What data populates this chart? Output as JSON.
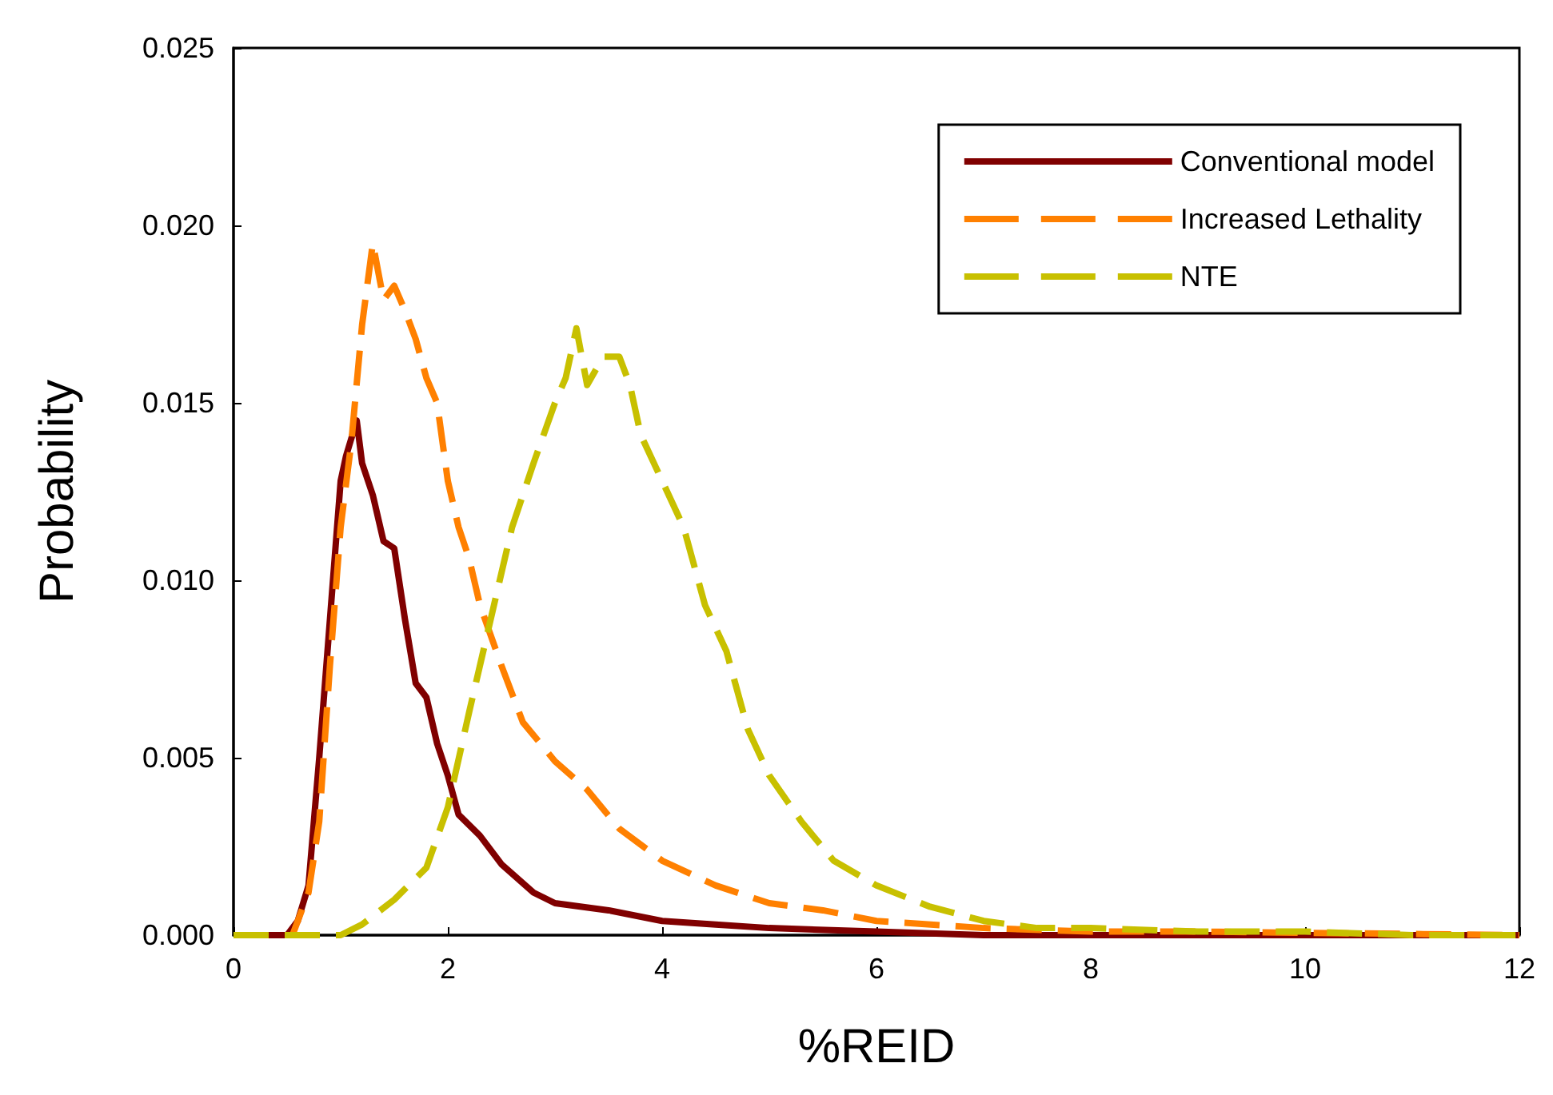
{
  "chart_data": {
    "type": "line",
    "xlabel": "%REID",
    "ylabel": "Probability",
    "legend": "top right",
    "grid": false,
    "marker": "none",
    "xlim": [
      0,
      12
    ],
    "xticks": [
      0,
      2,
      4,
      6,
      8,
      10,
      12
    ],
    "ylim": [
      0,
      0.025
    ],
    "yticks": [
      {
        "value": 0,
        "label": "0.000"
      },
      {
        "value": 0.005,
        "label": "0.005"
      },
      {
        "value": 0.01,
        "label": "0.010"
      },
      {
        "value": 0.015,
        "label": "0.015"
      },
      {
        "value": 0.02,
        "label": "0.020"
      },
      {
        "value": 0.025,
        "label": "0.025"
      }
    ],
    "series": [
      {
        "name": "Conventional model",
        "color": "#800000",
        "line_style": "solid",
        "x": [
          0,
          0.5,
          0.6,
          0.7,
          0.8,
          0.9,
          1.0,
          1.05,
          1.15,
          1.2,
          1.3,
          1.4,
          1.5,
          1.6,
          1.7,
          1.8,
          1.9,
          2.0,
          2.1,
          2.3,
          2.5,
          2.8,
          3.0,
          3.5,
          4.0,
          4.5,
          5.0,
          6.0,
          7.0,
          12
        ],
        "values": [
          0,
          0,
          0.0004,
          0.0014,
          0.005,
          0.0089,
          0.0128,
          0.0135,
          0.0145,
          0.0133,
          0.0124,
          0.0111,
          0.0109,
          0.0089,
          0.0071,
          0.0067,
          0.0054,
          0.0045,
          0.0034,
          0.0028,
          0.002,
          0.0012,
          0.0009,
          0.0007,
          0.0004,
          0.0003,
          0.0002,
          0.0001,
          0,
          0
        ]
      },
      {
        "name": "Increased Lethality",
        "color": "#ff8000",
        "line_style": "dashed",
        "x": [
          0,
          0.55,
          0.7,
          0.8,
          0.9,
          1.0,
          1.1,
          1.2,
          1.3,
          1.4,
          1.5,
          1.6,
          1.7,
          1.8,
          1.9,
          2.0,
          2.1,
          2.2,
          2.3,
          2.5,
          2.7,
          3.0,
          3.3,
          3.6,
          4.0,
          4.5,
          5.0,
          5.5,
          6.0,
          7.0,
          8.0,
          9.0,
          12
        ],
        "values": [
          0,
          0,
          0.0012,
          0.0032,
          0.0076,
          0.0115,
          0.0139,
          0.0172,
          0.0195,
          0.0179,
          0.0183,
          0.0176,
          0.0168,
          0.0157,
          0.015,
          0.0128,
          0.0115,
          0.0106,
          0.0093,
          0.0076,
          0.006,
          0.0049,
          0.0041,
          0.003,
          0.0021,
          0.0014,
          0.0009,
          0.0007,
          0.0004,
          0.0002,
          0.0001,
          0.0001,
          0
        ]
      },
      {
        "name": "NTE",
        "color": "#c8c000",
        "line_style": "dashed",
        "x": [
          0,
          1.0,
          1.2,
          1.5,
          1.8,
          2.0,
          2.2,
          2.4,
          2.6,
          2.8,
          3.0,
          3.1,
          3.2,
          3.3,
          3.45,
          3.6,
          3.7,
          3.8,
          4.0,
          4.2,
          4.4,
          4.6,
          4.8,
          5.0,
          5.3,
          5.6,
          6.0,
          6.5,
          7.0,
          7.5,
          8.0,
          9.0,
          10.0,
          11.0,
          12
        ],
        "values": [
          0,
          0,
          0.0003,
          0.001,
          0.0019,
          0.0036,
          0.0063,
          0.0089,
          0.0115,
          0.0133,
          0.015,
          0.0157,
          0.0171,
          0.0155,
          0.0163,
          0.0163,
          0.0155,
          0.0141,
          0.0128,
          0.0115,
          0.0093,
          0.008,
          0.0058,
          0.0045,
          0.0032,
          0.0021,
          0.0014,
          0.0008,
          0.0004,
          0.0002,
          0.0002,
          0.0001,
          0.0001,
          0,
          0
        ]
      }
    ]
  }
}
